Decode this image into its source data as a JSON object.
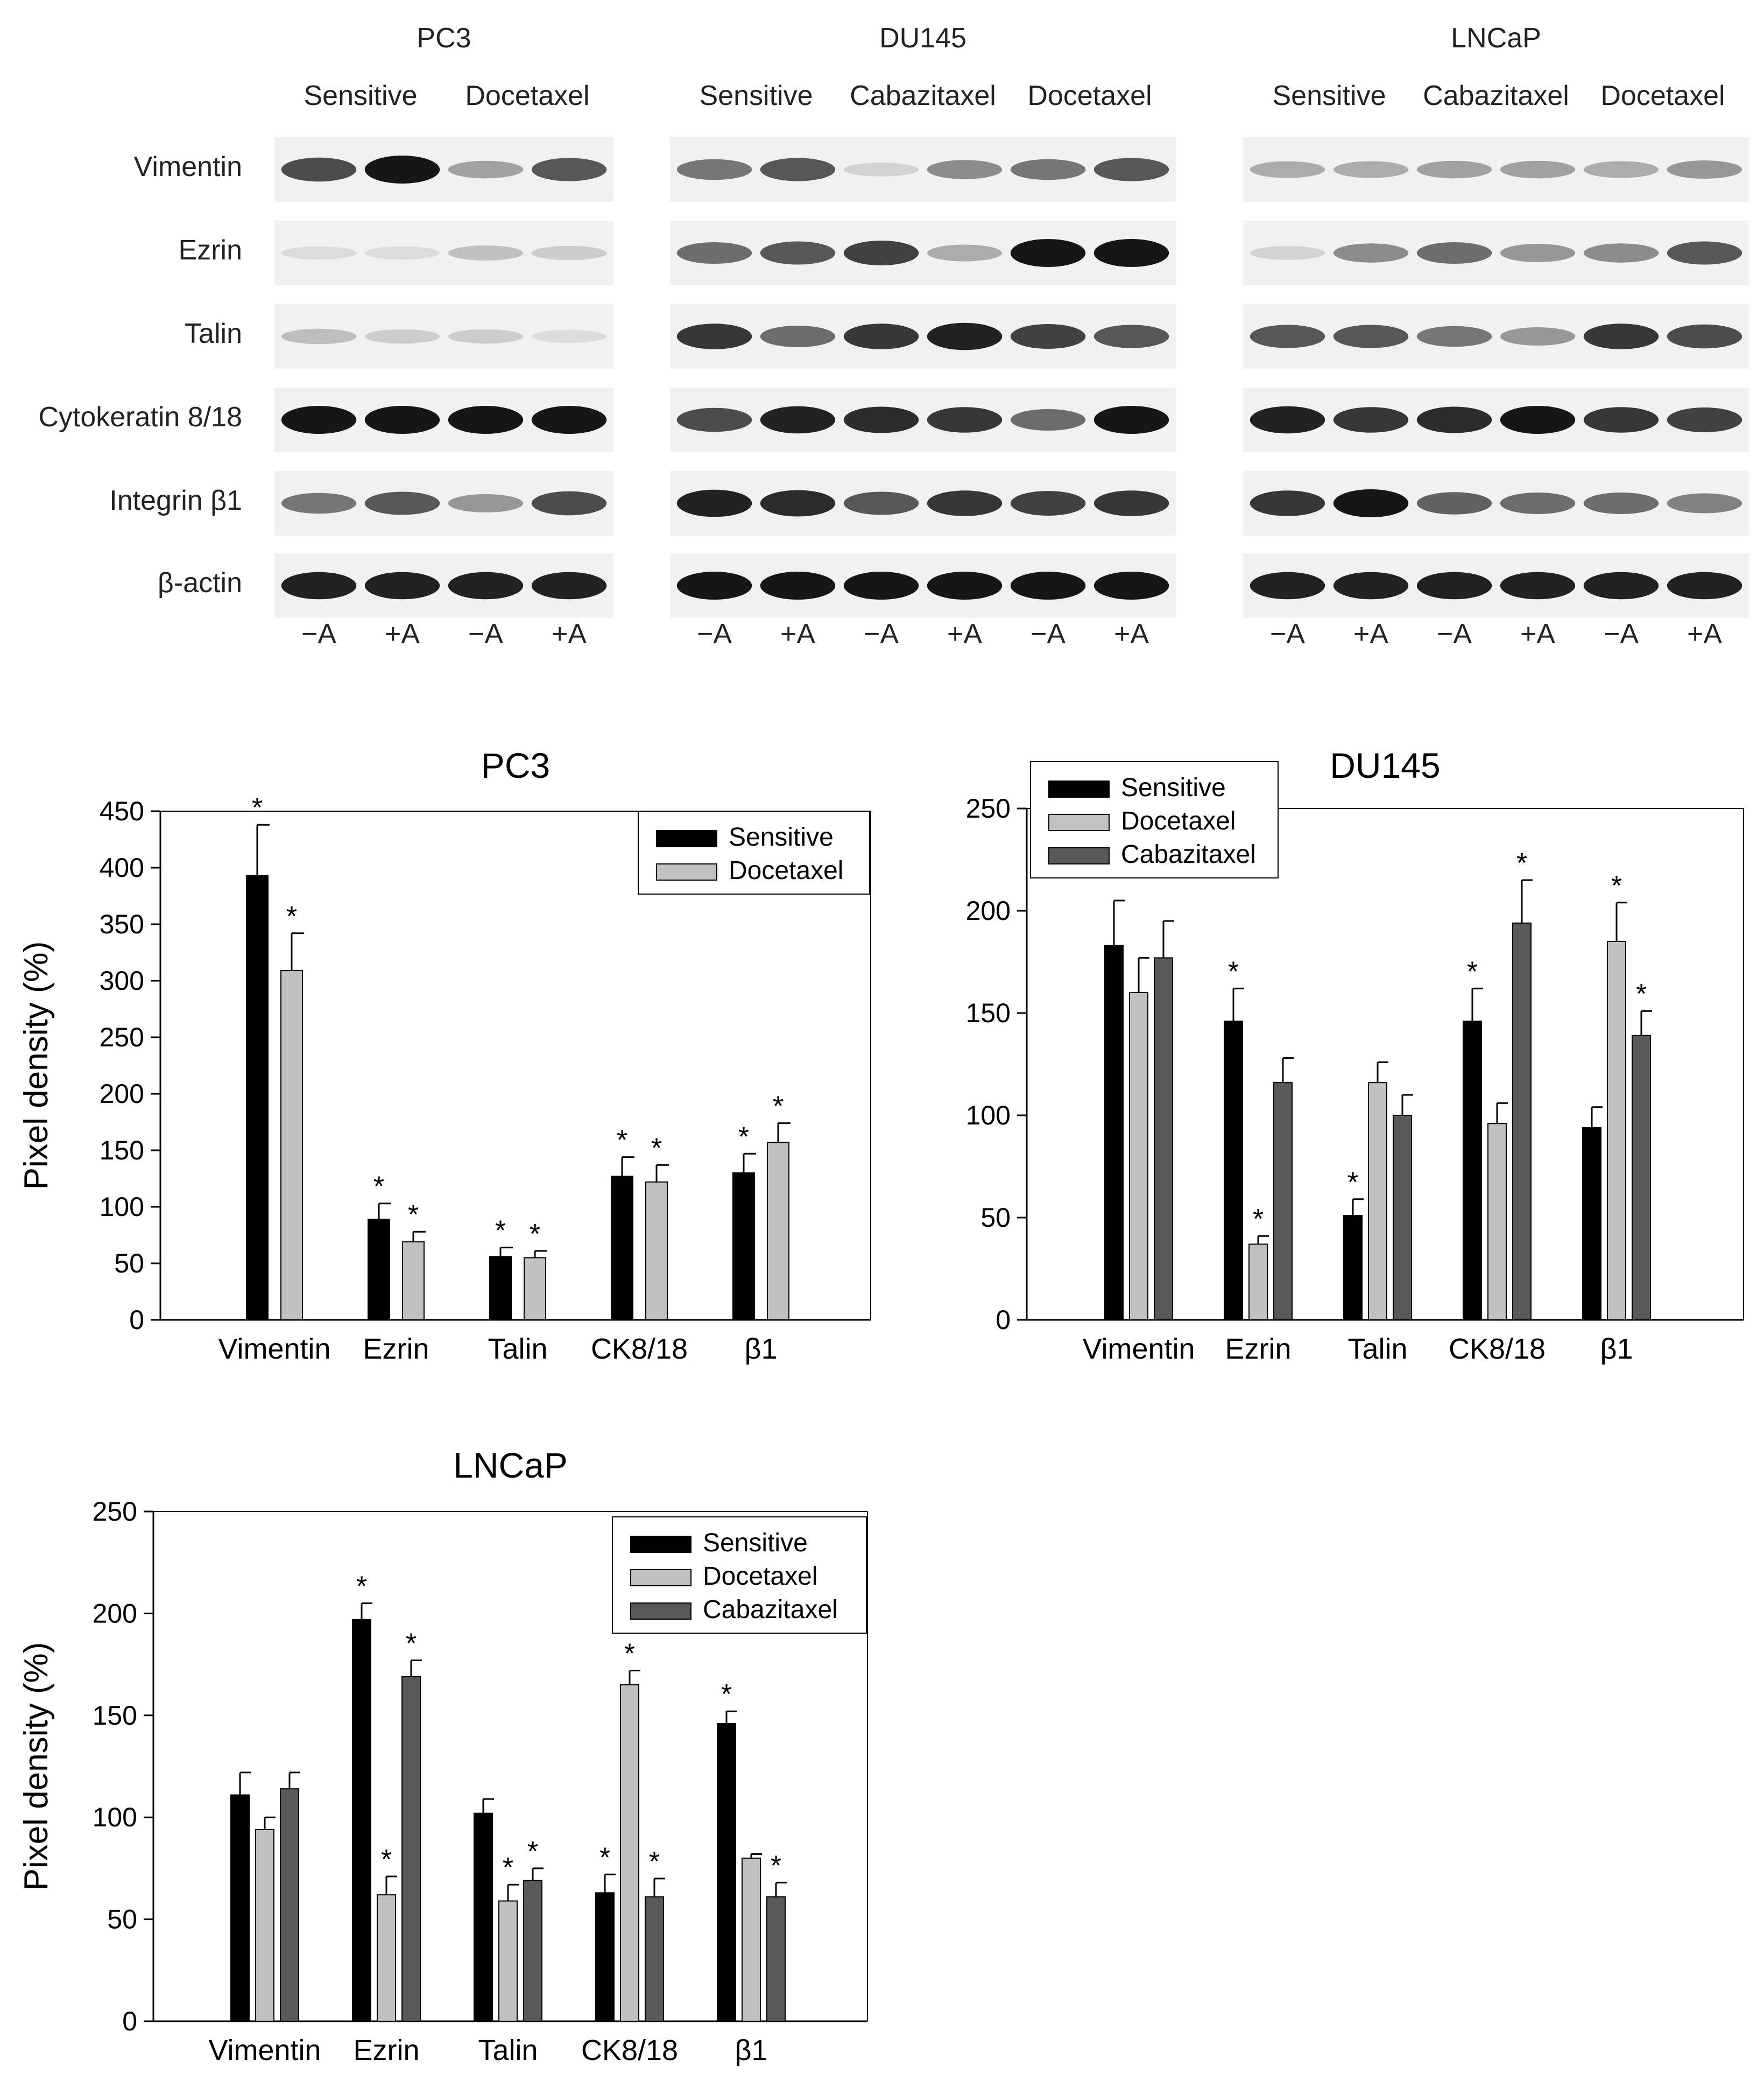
{
  "blots": {
    "row_labels": [
      "Vimentin",
      "Ezrin",
      "Talin",
      "Cytokeratin 8/18",
      "Integrin β1",
      "β-actin"
    ],
    "panels": [
      {
        "cell_line": "PC3",
        "groups": [
          "Sensitive",
          "Docetaxel"
        ],
        "lanes": [
          "−A",
          "+A",
          "−A",
          "+A"
        ],
        "intensity": [
          [
            0.75,
            1.0,
            0.35,
            0.7
          ],
          [
            0.08,
            0.08,
            0.2,
            0.15
          ],
          [
            0.22,
            0.15,
            0.15,
            0.08
          ],
          [
            1.0,
            1.0,
            1.0,
            1.0
          ],
          [
            0.55,
            0.7,
            0.4,
            0.75
          ],
          [
            0.95,
            0.95,
            0.95,
            0.95
          ]
        ]
      },
      {
        "cell_line": "DU145",
        "groups": [
          "Sensitive",
          "Cabazitaxel",
          "Docetaxel"
        ],
        "lanes": [
          "−A",
          "+A",
          "−A",
          "+A",
          "−A",
          "+A"
        ],
        "intensity": [
          [
            0.55,
            0.7,
            0.12,
            0.45,
            0.55,
            0.7
          ],
          [
            0.6,
            0.7,
            0.8,
            0.3,
            1.0,
            1.0
          ],
          [
            0.85,
            0.6,
            0.85,
            0.95,
            0.8,
            0.7
          ],
          [
            0.75,
            0.95,
            0.9,
            0.85,
            0.6,
            1.0
          ],
          [
            0.95,
            0.9,
            0.7,
            0.85,
            0.8,
            0.85
          ],
          [
            1.0,
            1.0,
            1.0,
            1.0,
            1.0,
            1.0
          ]
        ]
      },
      {
        "cell_line": "LNCaP",
        "groups": [
          "Sensitive",
          "Cabazitaxel",
          "Docetaxel"
        ],
        "lanes": [
          "−A",
          "+A",
          "−A",
          "+A",
          "−A",
          "+A"
        ],
        "intensity": [
          [
            0.3,
            0.3,
            0.35,
            0.35,
            0.3,
            0.4
          ],
          [
            0.12,
            0.45,
            0.6,
            0.4,
            0.45,
            0.7
          ],
          [
            0.7,
            0.7,
            0.55,
            0.4,
            0.85,
            0.75
          ],
          [
            0.95,
            0.85,
            0.9,
            1.0,
            0.85,
            0.8
          ],
          [
            0.85,
            1.0,
            0.65,
            0.6,
            0.6,
            0.5
          ],
          [
            0.95,
            0.95,
            0.95,
            0.95,
            0.95,
            0.95
          ]
        ]
      }
    ]
  },
  "chart_data": [
    {
      "type": "bar",
      "title": "PC3",
      "ylabel": "Pixel density (%)",
      "xlabel": "",
      "ylim": [
        0,
        450
      ],
      "yticks": [
        0,
        50,
        100,
        150,
        200,
        250,
        300,
        350,
        400,
        450
      ],
      "categories": [
        "Vimentin",
        "Ezrin",
        "Talin",
        "CK8/18",
        "β1"
      ],
      "legend_position": "top-right",
      "series": [
        {
          "name": "Sensitive",
          "color": "#000000",
          "values": [
            393,
            89,
            56,
            127,
            130
          ],
          "errors": [
            45,
            14,
            8,
            17,
            17
          ],
          "significant": [
            true,
            true,
            true,
            true,
            true
          ]
        },
        {
          "name": "Docetaxel",
          "color": "#c0c0c0",
          "values": [
            309,
            69,
            55,
            122,
            157
          ],
          "errors": [
            33,
            9,
            6,
            15,
            17
          ],
          "significant": [
            true,
            true,
            true,
            true,
            true
          ]
        }
      ],
      "significance_marker": "*"
    },
    {
      "type": "bar",
      "title": "DU145",
      "ylabel": "",
      "xlabel": "",
      "ylim": [
        0,
        250
      ],
      "yticks": [
        0,
        50,
        100,
        150,
        200,
        250
      ],
      "categories": [
        "Vimentin",
        "Ezrin",
        "Talin",
        "CK8/18",
        "β1"
      ],
      "legend_position": "top-left",
      "series": [
        {
          "name": "Sensitive",
          "color": "#000000",
          "values": [
            183,
            146,
            51,
            146,
            94
          ],
          "errors": [
            22,
            16,
            8,
            16,
            10
          ],
          "significant": [
            false,
            true,
            true,
            true,
            false
          ]
        },
        {
          "name": "Docetaxel",
          "color": "#c0c0c0",
          "values": [
            160,
            37,
            116,
            96,
            185
          ],
          "errors": [
            17,
            4,
            10,
            10,
            19
          ],
          "significant": [
            false,
            true,
            false,
            false,
            true
          ]
        },
        {
          "name": "Cabazitaxel",
          "color": "#595959",
          "values": [
            177,
            116,
            100,
            194,
            139
          ],
          "errors": [
            18,
            12,
            10,
            21,
            12
          ],
          "significant": [
            false,
            false,
            false,
            true,
            true
          ]
        }
      ],
      "significance_marker": "*"
    },
    {
      "type": "bar",
      "title": "LNCaP",
      "ylabel": "Pixel density (%)",
      "xlabel": "",
      "ylim": [
        0,
        250
      ],
      "yticks": [
        0,
        50,
        100,
        150,
        200,
        250
      ],
      "categories": [
        "Vimentin",
        "Ezrin",
        "Talin",
        "CK8/18",
        "β1"
      ],
      "legend_position": "top-right",
      "series": [
        {
          "name": "Sensitive",
          "color": "#000000",
          "values": [
            111,
            197,
            102,
            63,
            146
          ],
          "errors": [
            11,
            8,
            7,
            9,
            6
          ],
          "significant": [
            false,
            true,
            false,
            true,
            true
          ]
        },
        {
          "name": "Docetaxel",
          "color": "#c0c0c0",
          "values": [
            94,
            62,
            59,
            165,
            80
          ],
          "errors": [
            6,
            9,
            8,
            7,
            2
          ],
          "significant": [
            false,
            true,
            true,
            true,
            false
          ]
        },
        {
          "name": "Cabazitaxel",
          "color": "#595959",
          "values": [
            114,
            169,
            69,
            61,
            61
          ],
          "errors": [
            8,
            8,
            6,
            9,
            7
          ],
          "significant": [
            false,
            true,
            true,
            true,
            true
          ]
        }
      ],
      "significance_marker": "*"
    }
  ]
}
